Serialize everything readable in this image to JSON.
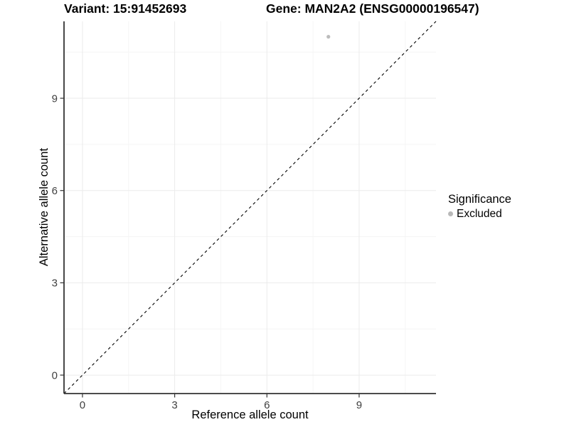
{
  "header": {
    "title_variant": "Variant: 15:91452693",
    "title_gene": "Gene: MAN2A2 (ENSG00000196547)"
  },
  "chart_data": {
    "type": "scatter",
    "xlabel": "Reference allele count",
    "ylabel": "Alternative allele count",
    "xlim": [
      -0.6,
      11.5
    ],
    "ylim": [
      -0.6,
      11.5
    ],
    "x_ticks": [
      0,
      3,
      6,
      9
    ],
    "y_ticks": [
      0,
      3,
      6,
      9
    ],
    "x_minor_ticks": [
      1.5,
      4.5,
      7.5,
      10.5
    ],
    "y_minor_ticks": [
      1.5,
      4.5,
      7.5,
      10.5
    ],
    "grid": "major+minor, light gray on white",
    "points": [
      {
        "x": 8,
        "y": 11,
        "series": "Excluded"
      }
    ],
    "reference_line": {
      "slope": 1,
      "intercept": 0,
      "style": "dashed",
      "color": "#000000"
    },
    "legend": {
      "title": "Significance",
      "position": "right",
      "entries": [
        {
          "label": "Excluded",
          "color": "#b9b9b9"
        }
      ]
    },
    "colors": {
      "background": "#ffffff",
      "axis_line": "#333333",
      "tick_mark": "#333333",
      "tick_label": "#404040",
      "grid_major": "#ebebeb",
      "grid_minor": "#f5f5f5",
      "point": "#bcbcbc"
    }
  }
}
